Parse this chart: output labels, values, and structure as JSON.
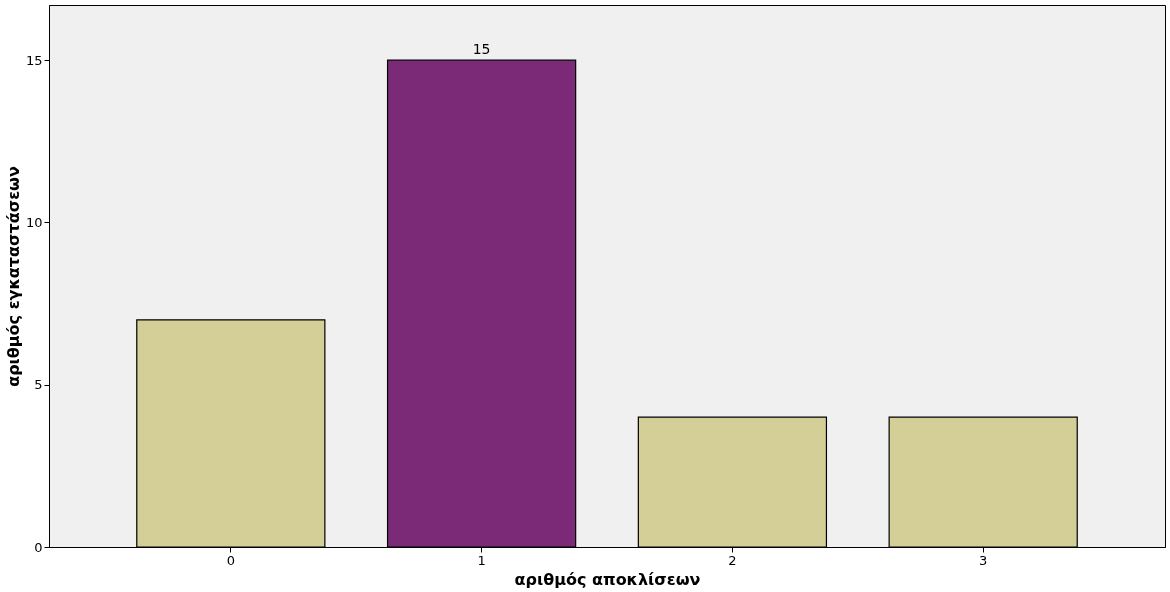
{
  "chart_data": {
    "type": "bar",
    "xlabel": "αριθμός αποκλίσεων",
    "ylabel": "αριθμός εγκαταστάσεων",
    "categories": [
      "0",
      "1",
      "2",
      "3"
    ],
    "values": [
      7,
      15,
      4,
      4
    ],
    "colors": [
      "#d4cf97",
      "#7b2a78",
      "#d4cf97",
      "#d4cf97"
    ],
    "value_labels": [
      null,
      "15",
      null,
      null
    ],
    "ylim": [
      0,
      16.7
    ],
    "yticks": [
      0,
      5,
      10,
      15
    ],
    "grid": false
  }
}
